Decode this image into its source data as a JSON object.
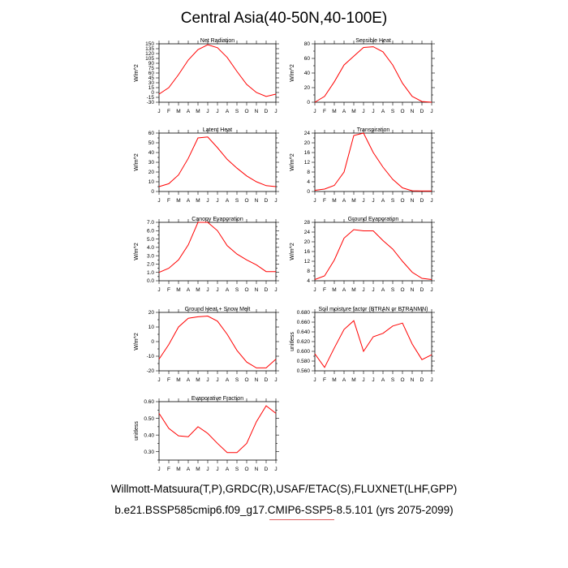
{
  "title": "Central Asia(40-50N,40-100E)",
  "footer": {
    "line1": "Willmott-Matsuura(T,P),GRDC(R),USAF/ETAC(S),FLUXNET(LHF,GPP)",
    "line2": "b.e21.BSSP585cmip6.f09_g17.CMIP6-SSP5-8.5.101 (yrs 2075-2099)"
  },
  "colors": {
    "line": "#ff0000",
    "axis": "#000000",
    "footer_underline": "#e06060"
  },
  "chart_data": [
    {
      "type": "line",
      "title": "Net Radiation",
      "ylabel": "W/m^2",
      "categories": [
        "J",
        "F",
        "M",
        "A",
        "M",
        "J",
        "J",
        "A",
        "S",
        "O",
        "N",
        "D",
        "J"
      ],
      "ylim": [
        -30,
        150
      ],
      "yticks": [
        -30,
        -15,
        0,
        15,
        30,
        45,
        60,
        75,
        90,
        105,
        120,
        135,
        150
      ],
      "ytick_labels": [
        "-30",
        "-15",
        "0",
        "15",
        "30",
        "45",
        "60",
        "75",
        "90",
        "105",
        "120",
        "135",
        "150"
      ],
      "values": [
        -5,
        15,
        55,
        100,
        132,
        147,
        138,
        108,
        65,
        25,
        0,
        -12,
        -5
      ]
    },
    {
      "type": "line",
      "title": "Sensible Heat",
      "ylabel": "W/m^2",
      "categories": [
        "J",
        "F",
        "M",
        "A",
        "M",
        "J",
        "J",
        "A",
        "S",
        "O",
        "N",
        "D",
        "J"
      ],
      "ylim": [
        0,
        80
      ],
      "yticks": [
        0,
        10,
        20,
        30,
        40,
        50,
        60,
        70,
        80
      ],
      "ytick_labels": [
        "0",
        "",
        "20",
        "",
        "40",
        "",
        "60",
        "",
        "80"
      ],
      "values": [
        0,
        8,
        28,
        51,
        63,
        75,
        76,
        69,
        51,
        26,
        8,
        1,
        0
      ]
    },
    {
      "type": "line",
      "title": "Latent Heat",
      "ylabel": "W/m^2",
      "categories": [
        "J",
        "F",
        "M",
        "A",
        "M",
        "J",
        "J",
        "A",
        "S",
        "O",
        "N",
        "D",
        "J"
      ],
      "ylim": [
        0,
        60
      ],
      "yticks": [
        0,
        5,
        10,
        15,
        20,
        25,
        30,
        35,
        40,
        45,
        50,
        55,
        60
      ],
      "ytick_labels": [
        "0",
        "",
        "10",
        "",
        "20",
        "",
        "30",
        "",
        "40",
        "",
        "50",
        "",
        "60"
      ],
      "values": [
        5,
        8,
        17,
        34,
        55,
        56,
        45,
        33,
        24,
        16,
        10,
        6,
        5
      ]
    },
    {
      "type": "line",
      "title": "Transpiration",
      "ylabel": "W/m^2",
      "categories": [
        "J",
        "F",
        "M",
        "A",
        "M",
        "J",
        "J",
        "A",
        "S",
        "O",
        "N",
        "D",
        "J"
      ],
      "ylim": [
        0,
        24
      ],
      "yticks": [
        0,
        2,
        4,
        6,
        8,
        10,
        12,
        14,
        16,
        18,
        20,
        22,
        24
      ],
      "ytick_labels": [
        "0",
        "",
        "4",
        "",
        "8",
        "",
        "12",
        "",
        "16",
        "",
        "20",
        "",
        "24"
      ],
      "values": [
        0.5,
        1,
        2.5,
        8,
        23,
        24,
        16,
        10,
        5,
        1.5,
        0.3,
        0.2,
        0.2
      ]
    },
    {
      "type": "line",
      "title": "Canopy Evaporation",
      "ylabel": "W/m^2",
      "categories": [
        "J",
        "F",
        "M",
        "A",
        "M",
        "J",
        "J",
        "A",
        "S",
        "O",
        "N",
        "D",
        "J"
      ],
      "ylim": [
        0,
        7
      ],
      "yticks": [
        0,
        0.5,
        1,
        1.5,
        2,
        2.5,
        3,
        3.5,
        4,
        4.5,
        5,
        5.5,
        6,
        6.5,
        7
      ],
      "ytick_labels": [
        "0.0",
        "",
        "1.0",
        "",
        "2.0",
        "",
        "3.0",
        "",
        "4.0",
        "",
        "5.0",
        "",
        "6.0",
        "",
        "7.0"
      ],
      "values": [
        1,
        1.5,
        2.5,
        4.3,
        7,
        7,
        6,
        4.2,
        3.2,
        2.5,
        1.9,
        1.1,
        1.1
      ]
    },
    {
      "type": "line",
      "title": "Ground Evaporation",
      "ylabel": "W/m^2",
      "categories": [
        "J",
        "F",
        "M",
        "A",
        "M",
        "J",
        "J",
        "A",
        "S",
        "O",
        "N",
        "D",
        "J"
      ],
      "ylim": [
        4,
        28
      ],
      "yticks": [
        4,
        6,
        8,
        10,
        12,
        14,
        16,
        18,
        20,
        22,
        24,
        26,
        28
      ],
      "ytick_labels": [
        "4",
        "",
        "8",
        "",
        "12",
        "",
        "16",
        "",
        "20",
        "",
        "24",
        "",
        "28"
      ],
      "values": [
        4.5,
        6,
        12.5,
        21.5,
        25,
        24.5,
        24.5,
        20.5,
        17,
        12,
        7.5,
        5,
        4.5
      ]
    },
    {
      "type": "line",
      "title": "Ground Heat + Snow Melt",
      "ylabel": "W/m^2",
      "categories": [
        "J",
        "F",
        "M",
        "A",
        "M",
        "J",
        "J",
        "A",
        "S",
        "O",
        "N",
        "D",
        "J"
      ],
      "ylim": [
        -20,
        20
      ],
      "yticks": [
        -20,
        -15,
        -10,
        -5,
        0,
        5,
        10,
        15,
        20
      ],
      "ytick_labels": [
        "-20",
        "",
        "-10",
        "",
        "0",
        "",
        "10",
        "",
        "20"
      ],
      "values": [
        -12,
        -2,
        10,
        16,
        17,
        17.5,
        14,
        5,
        -6,
        -14,
        -18,
        -18,
        -12
      ]
    },
    {
      "type": "line",
      "title": "Soil moisture factor (BTRAN or BTRANMN)",
      "ylabel": "unitless",
      "categories": [
        "J",
        "F",
        "M",
        "A",
        "M",
        "J",
        "J",
        "A",
        "S",
        "O",
        "N",
        "D",
        "J"
      ],
      "ylim": [
        0.56,
        0.68
      ],
      "yticks": [
        0.56,
        0.57,
        0.58,
        0.59,
        0.6,
        0.61,
        0.62,
        0.63,
        0.64,
        0.65,
        0.66,
        0.67,
        0.68
      ],
      "ytick_labels": [
        "0.560",
        "",
        "0.580",
        "",
        "0.600",
        "",
        "0.620",
        "",
        "0.640",
        "",
        "0.660",
        "",
        "0.680"
      ],
      "values": [
        0.595,
        0.567,
        0.607,
        0.645,
        0.663,
        0.6,
        0.63,
        0.637,
        0.652,
        0.658,
        0.615,
        0.583,
        0.593
      ]
    },
    {
      "type": "line",
      "title": "Evaporative Fraction",
      "ylabel": "unitless",
      "categories": [
        "J",
        "F",
        "M",
        "A",
        "M",
        "J",
        "J",
        "A",
        "S",
        "O",
        "N",
        "D",
        "J"
      ],
      "ylim": [
        0.25,
        0.6
      ],
      "yticks": [
        0.25,
        0.3,
        0.35,
        0.4,
        0.45,
        0.5,
        0.55,
        0.6
      ],
      "ytick_labels": [
        "",
        "0.30",
        "",
        "0.40",
        "",
        "0.50",
        "",
        "0.60"
      ],
      "values": [
        0.53,
        0.44,
        0.395,
        0.39,
        0.45,
        0.41,
        0.35,
        0.295,
        0.295,
        0.35,
        0.48,
        0.575,
        0.53
      ]
    }
  ]
}
